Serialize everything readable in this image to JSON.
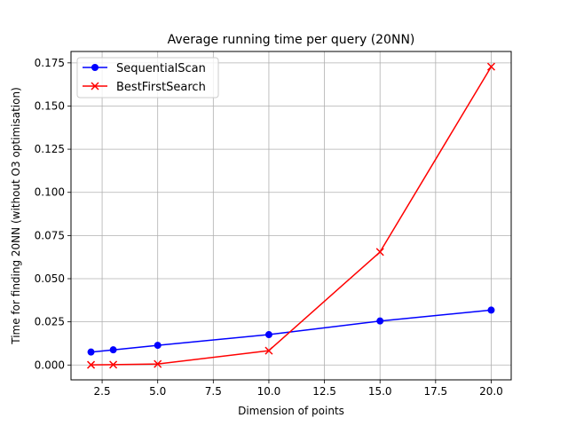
{
  "chart_data": {
    "type": "line",
    "title": "Average running time per query (20NN)",
    "xlabel": "Dimension of points",
    "ylabel": "Time for finding 20NN (without O3 optimisation)",
    "xlim": [
      1.1,
      20.9
    ],
    "ylim": [
      -0.0086,
      0.1816
    ],
    "xticks": [
      2.5,
      5.0,
      7.5,
      10.0,
      12.5,
      15.0,
      17.5,
      20.0
    ],
    "xtick_labels": [
      "2.5",
      "5.0",
      "7.5",
      "10.0",
      "12.5",
      "15.0",
      "17.5",
      "20.0"
    ],
    "yticks": [
      0.0,
      0.025,
      0.05,
      0.075,
      0.1,
      0.125,
      0.15,
      0.175
    ],
    "ytick_labels": [
      "0.000",
      "0.025",
      "0.050",
      "0.075",
      "0.100",
      "0.125",
      "0.150",
      "0.175"
    ],
    "grid": true,
    "legend_position": "upper-left",
    "series": [
      {
        "name": "SequentialScan",
        "color": "#0000ff",
        "marker": "circle",
        "x": [
          2,
          3,
          5,
          10,
          15,
          20
        ],
        "y": [
          0.0075,
          0.0088,
          0.0114,
          0.0176,
          0.0255,
          0.0318
        ]
      },
      {
        "name": "BestFirstSearch",
        "color": "#ff0000",
        "marker": "x",
        "x": [
          2,
          3,
          5,
          10,
          15,
          20
        ],
        "y": [
          0.0001,
          0.0002,
          0.0006,
          0.0083,
          0.0655,
          0.1728
        ]
      }
    ]
  }
}
